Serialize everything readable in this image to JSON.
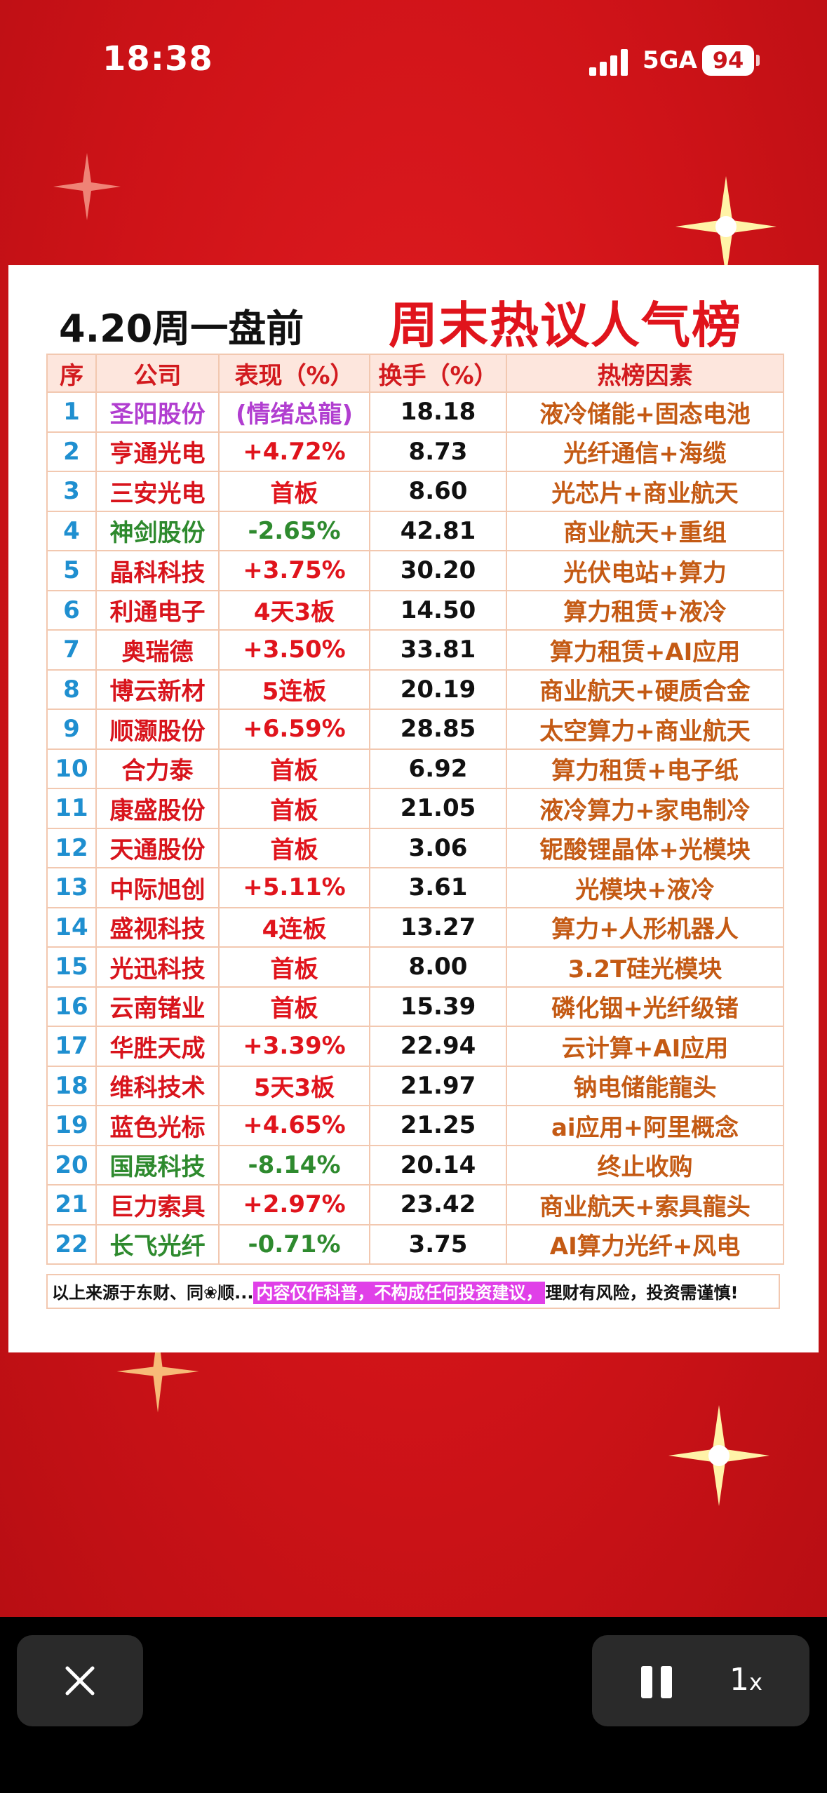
{
  "status_bar": {
    "time": "18:38",
    "network": "5GA",
    "battery": "94"
  },
  "headline": {
    "left": "4.20周一盘前",
    "right": "周末热议人气榜"
  },
  "table": {
    "headers": [
      "序",
      "公司",
      "表现（%）",
      "换手（%）",
      "热榜因素"
    ],
    "rows": [
      {
        "idx": "1",
        "company": "圣阳股份",
        "perf": "(情绪总龍)",
        "turnover": "18.18",
        "reason": "液冷储能+固态电池",
        "company_color": "purple",
        "perf_color": "purple"
      },
      {
        "idx": "2",
        "company": "亨通光电",
        "perf": "+4.72%",
        "turnover": "8.73",
        "reason": "光纤通信+海缆",
        "company_color": "red",
        "perf_color": "red"
      },
      {
        "idx": "3",
        "company": "三安光电",
        "perf": "首板",
        "turnover": "8.60",
        "reason": "光芯片+商业航天",
        "company_color": "red",
        "perf_color": "red"
      },
      {
        "idx": "4",
        "company": "神剑股份",
        "perf": "-2.65%",
        "turnover": "42.81",
        "reason": "商业航天+重组",
        "company_color": "green",
        "perf_color": "green"
      },
      {
        "idx": "5",
        "company": "晶科科技",
        "perf": "+3.75%",
        "turnover": "30.20",
        "reason": "光伏电站+算力",
        "company_color": "red",
        "perf_color": "red"
      },
      {
        "idx": "6",
        "company": "利通电子",
        "perf": "4天3板",
        "turnover": "14.50",
        "reason": "算力租赁+液冷",
        "company_color": "red",
        "perf_color": "red"
      },
      {
        "idx": "7",
        "company": "奥瑞德",
        "perf": "+3.50%",
        "turnover": "33.81",
        "reason": "算力租赁+AI应用",
        "company_color": "red",
        "perf_color": "red"
      },
      {
        "idx": "8",
        "company": "博云新材",
        "perf": "5连板",
        "turnover": "20.19",
        "reason": "商业航天+硬质合金",
        "company_color": "red",
        "perf_color": "red"
      },
      {
        "idx": "9",
        "company": "顺灏股份",
        "perf": "+6.59%",
        "turnover": "28.85",
        "reason": "太空算力+商业航天",
        "company_color": "red",
        "perf_color": "red"
      },
      {
        "idx": "10",
        "company": "合力泰",
        "perf": "首板",
        "turnover": "6.92",
        "reason": "算力租赁+电子纸",
        "company_color": "red",
        "perf_color": "red"
      },
      {
        "idx": "11",
        "company": "康盛股份",
        "perf": "首板",
        "turnover": "21.05",
        "reason": "液冷算力+家电制冷",
        "company_color": "red",
        "perf_color": "red"
      },
      {
        "idx": "12",
        "company": "天通股份",
        "perf": "首板",
        "turnover": "3.06",
        "reason": "铌酸锂晶体+光模块",
        "company_color": "red",
        "perf_color": "red"
      },
      {
        "idx": "13",
        "company": "中际旭创",
        "perf": "+5.11%",
        "turnover": "3.61",
        "reason": "光模块+液冷",
        "company_color": "red",
        "perf_color": "red"
      },
      {
        "idx": "14",
        "company": "盛视科技",
        "perf": "4连板",
        "turnover": "13.27",
        "reason": "算力+人形机器人",
        "company_color": "red",
        "perf_color": "red"
      },
      {
        "idx": "15",
        "company": "光迅科技",
        "perf": "首板",
        "turnover": "8.00",
        "reason": "3.2T硅光模块",
        "company_color": "red",
        "perf_color": "red"
      },
      {
        "idx": "16",
        "company": "云南锗业",
        "perf": "首板",
        "turnover": "15.39",
        "reason": "磷化铟+光纤级锗",
        "company_color": "red",
        "perf_color": "red"
      },
      {
        "idx": "17",
        "company": "华胜天成",
        "perf": "+3.39%",
        "turnover": "22.94",
        "reason": "云计算+AI应用",
        "company_color": "red",
        "perf_color": "red"
      },
      {
        "idx": "18",
        "company": "维科技术",
        "perf": "5天3板",
        "turnover": "21.97",
        "reason": "钠电储能龍头",
        "company_color": "red",
        "perf_color": "red"
      },
      {
        "idx": "19",
        "company": "蓝色光标",
        "perf": "+4.65%",
        "turnover": "21.25",
        "reason": "ai应用+阿里概念",
        "company_color": "red",
        "perf_color": "red"
      },
      {
        "idx": "20",
        "company": "国晟科技",
        "perf": "-8.14%",
        "turnover": "20.14",
        "reason": "终止收购",
        "company_color": "green",
        "perf_color": "green"
      },
      {
        "idx": "21",
        "company": "巨力索具",
        "perf": "+2.97%",
        "turnover": "23.42",
        "reason": "商业航天+索具龍头",
        "company_color": "red",
        "perf_color": "red"
      },
      {
        "idx": "22",
        "company": "长飞光纤",
        "perf": "-0.71%",
        "turnover": "3.75",
        "reason": "AI算力光纤+风电",
        "company_color": "green",
        "perf_color": "green"
      }
    ]
  },
  "disclaimer": {
    "prefix": "以上来源于东财、同❀顺...",
    "highlight": "内容仅作科普，不构成任何投资建议，",
    "suffix": "理财有风险，投资需谨慎!"
  },
  "player": {
    "speed": "1",
    "speed_unit": "x",
    "close_icon": "close-icon",
    "pause_icon": "pause-icon"
  },
  "colors": {
    "background": "#d4141a",
    "headline_red": "#e0141c",
    "index_blue": "#1f8fd0",
    "reason_brown": "#c45a14",
    "green": "#2e8a2e",
    "purple": "#b13ed0"
  }
}
